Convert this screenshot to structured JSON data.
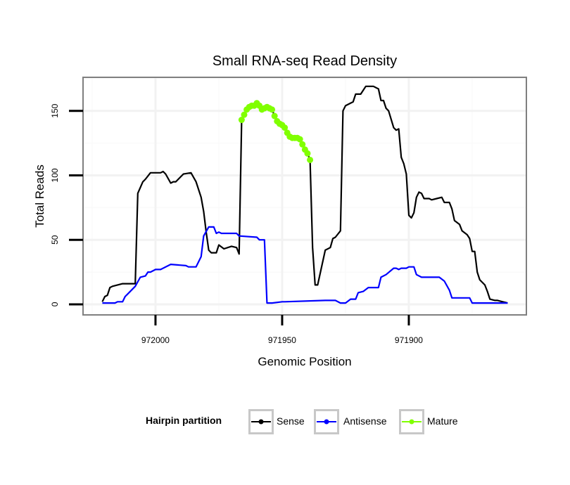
{
  "chart_data": {
    "type": "line",
    "title": "Small RNA-seq Read Density",
    "xlabel": "Genomic Position",
    "ylabel": "Total Reads",
    "xlim": [
      972028.6,
      971853.6
    ],
    "x_reversed": true,
    "ylim": [
      -8.2,
      176
    ],
    "x_ticks": [
      972000,
      971950,
      971900
    ],
    "x_tick_labels": [
      "972000",
      "971950",
      "971900"
    ],
    "y_ticks": [
      0,
      50,
      100,
      150
    ],
    "y_tick_labels": [
      "0",
      "50",
      "100",
      "150"
    ],
    "grid": true,
    "legend": {
      "title": "Hairpin partition",
      "placement": "bottom",
      "entries": [
        "Sense",
        "Antisense",
        "Mature"
      ]
    },
    "series": [
      {
        "name": "Sense",
        "color": "#000000",
        "points": [
          [
            972021,
            2
          ],
          [
            972020,
            6
          ],
          [
            972019,
            7
          ],
          [
            972018,
            13
          ],
          [
            972017,
            14
          ],
          [
            972013,
            16
          ],
          [
            972008,
            16
          ],
          [
            972007,
            86
          ],
          [
            972005,
            95
          ],
          [
            972004,
            97
          ],
          [
            972002,
            102
          ],
          [
            971998,
            102
          ],
          [
            971997,
            103
          ],
          [
            971996,
            101
          ],
          [
            971994,
            94
          ],
          [
            971993,
            95
          ],
          [
            971992,
            95
          ],
          [
            971989,
            101
          ],
          [
            971986,
            102
          ],
          [
            971984,
            95
          ],
          [
            971982,
            83
          ],
          [
            971981,
            72
          ],
          [
            971980,
            56
          ],
          [
            971979,
            42
          ],
          [
            971978,
            40
          ],
          [
            971976,
            40
          ],
          [
            971975,
            46
          ],
          [
            971973,
            43
          ],
          [
            971970,
            45
          ],
          [
            971968,
            44
          ],
          [
            971967,
            39
          ],
          [
            971966,
            143
          ],
          [
            971965,
            147
          ],
          [
            971964,
            151
          ],
          [
            971963,
            153
          ],
          [
            971961,
            154
          ],
          [
            971960,
            156
          ],
          [
            971959,
            154
          ],
          [
            971958,
            151
          ],
          [
            971956,
            153
          ],
          [
            971954,
            151
          ],
          [
            971953,
            146
          ],
          [
            971952.5,
            144
          ],
          [
            971952,
            140
          ],
          [
            971950,
            139
          ],
          [
            971949,
            137
          ],
          [
            971948,
            133
          ],
          [
            971947,
            130
          ],
          [
            971945,
            129
          ],
          [
            971943,
            128
          ],
          [
            971942,
            124
          ],
          [
            971941,
            120
          ],
          [
            971940,
            117
          ],
          [
            971939,
            112
          ],
          [
            971938,
            44
          ],
          [
            971937,
            15
          ],
          [
            971936,
            15
          ],
          [
            971934,
            33
          ],
          [
            971933,
            42
          ],
          [
            971931,
            44
          ],
          [
            971930,
            51
          ],
          [
            971929,
            52
          ],
          [
            971927,
            57
          ],
          [
            971926,
            150
          ],
          [
            971925,
            154
          ],
          [
            971922,
            157
          ],
          [
            971921,
            163
          ],
          [
            971919,
            163
          ],
          [
            971917,
            169
          ],
          [
            971914,
            169
          ],
          [
            971912,
            167
          ],
          [
            971911,
            158
          ],
          [
            971910,
            158
          ],
          [
            971909,
            152
          ],
          [
            971908,
            150
          ],
          [
            971906,
            137
          ],
          [
            971905,
            135
          ],
          [
            971904,
            136
          ],
          [
            971903,
            114
          ],
          [
            971902,
            109
          ],
          [
            971901,
            101
          ],
          [
            971900,
            69
          ],
          [
            971899,
            67
          ],
          [
            971898,
            71
          ],
          [
            971897,
            83
          ],
          [
            971896,
            87
          ],
          [
            971895,
            86
          ],
          [
            971894,
            82
          ],
          [
            971892,
            82
          ],
          [
            971891,
            81
          ],
          [
            971889,
            82
          ],
          [
            971887,
            83
          ],
          [
            971886,
            79
          ],
          [
            971884,
            79
          ],
          [
            971883,
            74
          ],
          [
            971882,
            65
          ],
          [
            971880,
            62
          ],
          [
            971879,
            57
          ],
          [
            971877,
            54
          ],
          [
            971876,
            51
          ],
          [
            971875,
            41
          ],
          [
            971874,
            41
          ],
          [
            971873,
            25
          ],
          [
            971872,
            19
          ],
          [
            971870,
            15
          ],
          [
            971869,
            10
          ],
          [
            971868,
            4
          ],
          [
            971866,
            3
          ],
          [
            971865,
            3
          ],
          [
            971863,
            2
          ],
          [
            971861,
            1
          ]
        ]
      },
      {
        "name": "Antisense",
        "color": "#0000ff",
        "points": [
          [
            972021,
            1
          ],
          [
            972016,
            1
          ],
          [
            972015,
            2
          ],
          [
            972013,
            2
          ],
          [
            972012,
            6
          ],
          [
            972011,
            8
          ],
          [
            972008,
            14
          ],
          [
            972006,
            21
          ],
          [
            972004,
            22
          ],
          [
            972003,
            25
          ],
          [
            972002,
            25
          ],
          [
            972000,
            27
          ],
          [
            971998,
            27
          ],
          [
            971994,
            31
          ],
          [
            971988,
            30
          ],
          [
            971987,
            29
          ],
          [
            971984,
            29
          ],
          [
            971982,
            37
          ],
          [
            971981,
            53
          ],
          [
            971979,
            60
          ],
          [
            971977,
            60
          ],
          [
            971976,
            55
          ],
          [
            971975,
            56
          ],
          [
            971974,
            55
          ],
          [
            971968,
            55
          ],
          [
            971967,
            53
          ],
          [
            971960,
            52
          ],
          [
            971959,
            50
          ],
          [
            971957,
            50
          ],
          [
            971956,
            1
          ],
          [
            971954,
            1
          ],
          [
            971950,
            2
          ],
          [
            971949,
            2
          ],
          [
            971933,
            3
          ],
          [
            971932,
            3
          ],
          [
            971929,
            3
          ],
          [
            971927,
            1
          ],
          [
            971925,
            1
          ],
          [
            971923,
            4
          ],
          [
            971921,
            4
          ],
          [
            971920,
            9
          ],
          [
            971918,
            10
          ],
          [
            971916,
            13
          ],
          [
            971912,
            13
          ],
          [
            971911,
            21
          ],
          [
            971909,
            23
          ],
          [
            971906,
            28
          ],
          [
            971905,
            28
          ],
          [
            971904,
            27
          ],
          [
            971903,
            28
          ],
          [
            971901,
            28
          ],
          [
            971900,
            29
          ],
          [
            971898,
            29
          ],
          [
            971897,
            23
          ],
          [
            971895,
            21
          ],
          [
            971888,
            21
          ],
          [
            971886,
            18
          ],
          [
            971884,
            11
          ],
          [
            971883,
            5
          ],
          [
            971876,
            5
          ],
          [
            971875,
            1
          ],
          [
            971861,
            1
          ]
        ]
      },
      {
        "name": "Mature",
        "color": "#80ff00",
        "points": [
          [
            971966,
            143
          ],
          [
            971965,
            147
          ],
          [
            971964,
            151
          ],
          [
            971963,
            153
          ],
          [
            971962,
            154
          ],
          [
            971961,
            154
          ],
          [
            971960,
            156
          ],
          [
            971959,
            154
          ],
          [
            971958,
            151
          ],
          [
            971957,
            152
          ],
          [
            971956,
            153
          ],
          [
            971955,
            152
          ],
          [
            971954,
            151
          ],
          [
            971953,
            146
          ],
          [
            971952,
            142
          ],
          [
            971951,
            140
          ],
          [
            971950,
            139
          ],
          [
            971949,
            137
          ],
          [
            971948,
            133
          ],
          [
            971947,
            130
          ],
          [
            971946,
            129
          ],
          [
            971945,
            129
          ],
          [
            971944,
            129
          ],
          [
            971943,
            128
          ],
          [
            971942,
            124
          ],
          [
            971941,
            120
          ],
          [
            971940,
            117
          ],
          [
            971939,
            112
          ]
        ]
      }
    ]
  }
}
